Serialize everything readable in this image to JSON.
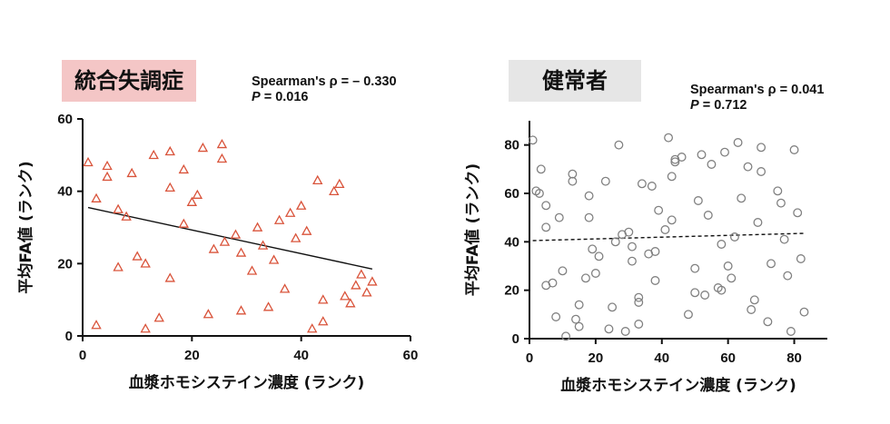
{
  "chart_data": [
    {
      "type": "scatter",
      "title": "統合失調症",
      "title_bg": "#f4c6c6",
      "stats": {
        "rho_text": "Spearman's ρ = – 0.330",
        "p_label": "P",
        "p_value": " = 0.016"
      },
      "xlabel": "血漿ホモシステイン濃度 (ランク)",
      "ylabel": "平均FA値 (ランク)",
      "xlim": [
        0,
        60
      ],
      "ylim": [
        0,
        60
      ],
      "xticks": [
        0,
        20,
        40,
        60
      ],
      "yticks": [
        0,
        20,
        40,
        60
      ],
      "marker": "triangle",
      "marker_color": "#d9533a",
      "trend": {
        "style": "solid",
        "x": [
          1,
          53
        ],
        "y": [
          35.5,
          18.5
        ]
      },
      "points": [
        [
          1,
          48
        ],
        [
          2.5,
          38
        ],
        [
          2.5,
          3
        ],
        [
          4.5,
          47
        ],
        [
          4.5,
          44
        ],
        [
          6.5,
          35
        ],
        [
          6.5,
          19
        ],
        [
          8,
          33
        ],
        [
          9,
          45
        ],
        [
          10,
          22
        ],
        [
          11.5,
          20
        ],
        [
          11.5,
          2
        ],
        [
          13,
          50
        ],
        [
          14,
          5
        ],
        [
          16,
          51
        ],
        [
          16,
          41
        ],
        [
          16,
          16
        ],
        [
          18.5,
          31
        ],
        [
          18.5,
          46
        ],
        [
          20,
          37
        ],
        [
          21,
          39
        ],
        [
          22,
          52
        ],
        [
          23,
          6
        ],
        [
          24,
          24
        ],
        [
          25.5,
          53
        ],
        [
          25.5,
          49
        ],
        [
          26,
          26
        ],
        [
          28,
          28
        ],
        [
          29,
          23
        ],
        [
          29,
          7
        ],
        [
          31,
          18
        ],
        [
          32,
          30
        ],
        [
          33,
          25
        ],
        [
          34,
          8
        ],
        [
          35,
          21
        ],
        [
          36,
          32
        ],
        [
          37,
          13
        ],
        [
          38,
          34
        ],
        [
          39,
          27
        ],
        [
          40,
          36
        ],
        [
          41,
          29
        ],
        [
          42,
          2
        ],
        [
          43,
          43
        ],
        [
          44,
          10
        ],
        [
          44,
          4
        ],
        [
          46,
          40
        ],
        [
          47,
          42
        ],
        [
          48,
          11
        ],
        [
          49,
          9
        ],
        [
          50,
          14
        ],
        [
          51,
          17
        ],
        [
          52,
          12
        ],
        [
          53,
          15
        ]
      ]
    },
    {
      "type": "scatter",
      "title": "健常者",
      "title_bg": "#e6e6e6",
      "stats": {
        "rho_text": "Spearman's ρ = 0.041",
        "p_label": "P",
        "p_value": " = 0.712"
      },
      "xlabel": "血漿ホモシステイン濃度 (ランク)",
      "ylabel": "平均FA値 (ランク)",
      "xlim": [
        0,
        90
      ],
      "ylim": [
        0,
        90
      ],
      "xticks": [
        0,
        20,
        40,
        60,
        80
      ],
      "yticks": [
        0,
        20,
        40,
        60,
        80
      ],
      "marker": "circle",
      "marker_color": "#808080",
      "trend": {
        "style": "dashed",
        "x": [
          1,
          83
        ],
        "y": [
          40.5,
          43.5
        ]
      },
      "points": [
        [
          1,
          82
        ],
        [
          2,
          61
        ],
        [
          3,
          60
        ],
        [
          3.5,
          70
        ],
        [
          5,
          55
        ],
        [
          5,
          46
        ],
        [
          5,
          22
        ],
        [
          7,
          23
        ],
        [
          8,
          9
        ],
        [
          9,
          50
        ],
        [
          10,
          28
        ],
        [
          11,
          1
        ],
        [
          13,
          68
        ],
        [
          13,
          65
        ],
        [
          14,
          8
        ],
        [
          15,
          5
        ],
        [
          15,
          14
        ],
        [
          17,
          25
        ],
        [
          18,
          59
        ],
        [
          18,
          50
        ],
        [
          19,
          37
        ],
        [
          20,
          27
        ],
        [
          21,
          34
        ],
        [
          23,
          65
        ],
        [
          24,
          4
        ],
        [
          25,
          13
        ],
        [
          26,
          40
        ],
        [
          27,
          80
        ],
        [
          28,
          43
        ],
        [
          29,
          3
        ],
        [
          30,
          44
        ],
        [
          31,
          38
        ],
        [
          31,
          32
        ],
        [
          33,
          17
        ],
        [
          33,
          15
        ],
        [
          33,
          6
        ],
        [
          34,
          64
        ],
        [
          36,
          35
        ],
        [
          37,
          63
        ],
        [
          38,
          36
        ],
        [
          38,
          24
        ],
        [
          39,
          53
        ],
        [
          41,
          45
        ],
        [
          42,
          83
        ],
        [
          43,
          49
        ],
        [
          43,
          67
        ],
        [
          44,
          74
        ],
        [
          44,
          73
        ],
        [
          46,
          75
        ],
        [
          48,
          10
        ],
        [
          50,
          19
        ],
        [
          50,
          29
        ],
        [
          51,
          57
        ],
        [
          52,
          76
        ],
        [
          53,
          18
        ],
        [
          54,
          51
        ],
        [
          55,
          72
        ],
        [
          57,
          21
        ],
        [
          58,
          39
        ],
        [
          58,
          20
        ],
        [
          59,
          77
        ],
        [
          60,
          30
        ],
        [
          61,
          25
        ],
        [
          62,
          42
        ],
        [
          63,
          81
        ],
        [
          64,
          58
        ],
        [
          66,
          71
        ],
        [
          67,
          12
        ],
        [
          68,
          16
        ],
        [
          69,
          48
        ],
        [
          70,
          69
        ],
        [
          70,
          79
        ],
        [
          72,
          7
        ],
        [
          73,
          31
        ],
        [
          75,
          61
        ],
        [
          76,
          56
        ],
        [
          77,
          41
        ],
        [
          78,
          26
        ],
        [
          79,
          3
        ],
        [
          80,
          78
        ],
        [
          81,
          52
        ],
        [
          82,
          33
        ],
        [
          83,
          11
        ]
      ]
    }
  ]
}
